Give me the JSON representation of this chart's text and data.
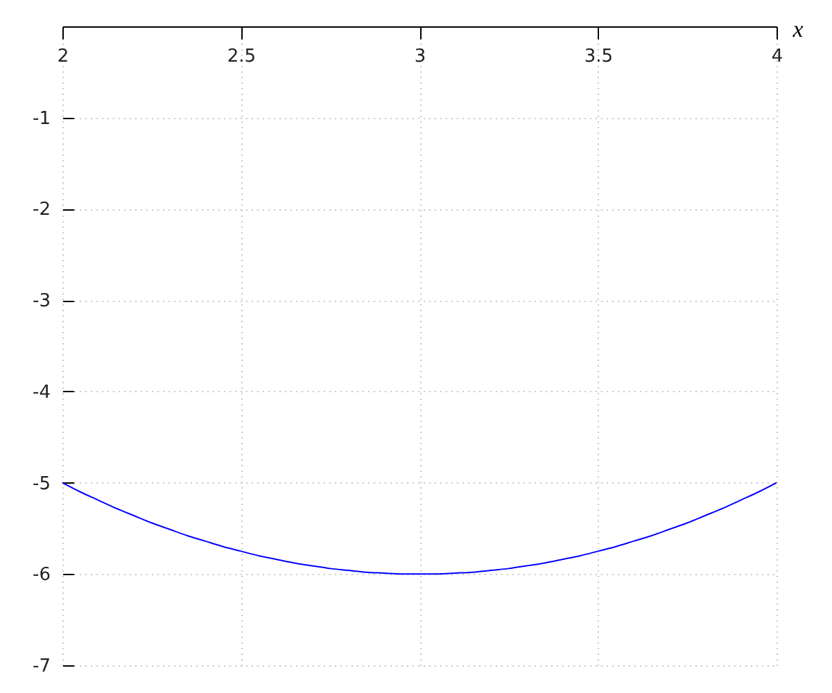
{
  "chart_data": {
    "type": "line",
    "xlabel": "x",
    "x": [
      2.0,
      2.05,
      2.1,
      2.15,
      2.2,
      2.25,
      2.3,
      2.35,
      2.4,
      2.45,
      2.5,
      2.55,
      2.6,
      2.65,
      2.7,
      2.75,
      2.8,
      2.85,
      2.9,
      2.95,
      3.0,
      3.05,
      3.1,
      3.15,
      3.2,
      3.25,
      3.3,
      3.35,
      3.4,
      3.45,
      3.5,
      3.55,
      3.6,
      3.65,
      3.7,
      3.75,
      3.8,
      3.85,
      3.9,
      3.95,
      4.0
    ],
    "series": [
      {
        "color": "#0000ff",
        "values": [
          -5.0,
          -5.1,
          -5.19,
          -5.28,
          -5.36,
          -5.44,
          -5.51,
          -5.58,
          -5.64,
          -5.7,
          -5.75,
          -5.8,
          -5.84,
          -5.88,
          -5.91,
          -5.94,
          -5.96,
          -5.98,
          -5.99,
          -6.0,
          -6.0,
          -6.0,
          -5.99,
          -5.98,
          -5.96,
          -5.94,
          -5.91,
          -5.88,
          -5.84,
          -5.8,
          -5.75,
          -5.7,
          -5.64,
          -5.58,
          -5.51,
          -5.44,
          -5.36,
          -5.28,
          -5.19,
          -5.1,
          -5.0
        ]
      }
    ],
    "xlim": [
      2,
      4
    ],
    "ylim": [
      -7,
      0
    ],
    "xticks": [
      2,
      2.5,
      3,
      3.5,
      4
    ],
    "yticks": [
      -1,
      -2,
      -3,
      -4,
      -5,
      -6,
      -7
    ],
    "grid": true,
    "marker": "none",
    "line_style": "solid"
  }
}
